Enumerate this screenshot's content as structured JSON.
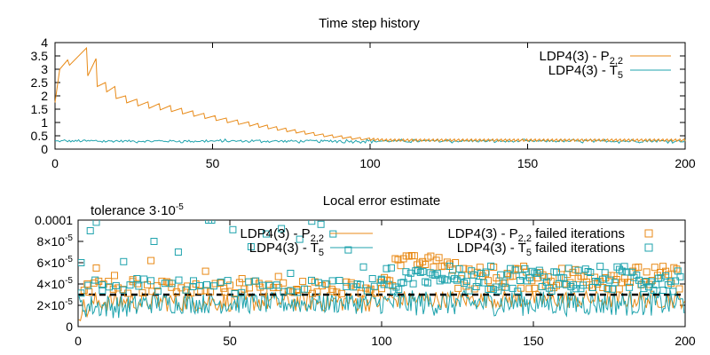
{
  "colors": {
    "orange": "#e88a17",
    "teal": "#1fa3ad",
    "axis": "#000000",
    "tolerance_line": "#000000"
  },
  "chart_data": [
    {
      "type": "line",
      "title": "Time step history",
      "xlabel": "",
      "ylabel": "",
      "xlim": [
        0,
        200
      ],
      "ylim": [
        0,
        4
      ],
      "x_ticks": [
        0,
        50,
        100,
        150,
        200
      ],
      "y_ticks": [
        0,
        0.5,
        1,
        1.5,
        2,
        2.5,
        3,
        3.5,
        4
      ],
      "x_tick_labels": [
        "0",
        "50",
        "100",
        "150",
        "200"
      ],
      "y_tick_labels": [
        "0",
        "0.5",
        "1",
        "1.5",
        "2",
        "2.5",
        "3",
        "3.5",
        "4"
      ],
      "grid": false,
      "legend_position": "top-right",
      "series": [
        {
          "name": "LDP4(3) - P",
          "name_sub": "2,2",
          "color": "orange",
          "style": "sawtooth",
          "peaks": [
            [
              0.3,
              1.75
            ],
            [
              4,
              3.4
            ],
            [
              10,
              3.8
            ],
            [
              13,
              2.5
            ],
            [
              16,
              2.35
            ],
            [
              21,
              2.0
            ],
            [
              28,
              1.75
            ],
            [
              36,
              1.6
            ],
            [
              45,
              1.35
            ],
            [
              55,
              1.1
            ],
            [
              65,
              0.9
            ],
            [
              75,
              0.7
            ],
            [
              85,
              0.52
            ],
            [
              95,
              0.4
            ],
            [
              105,
              0.33
            ],
            [
              200,
              0.33
            ]
          ],
          "drop": 0.22
        },
        {
          "name": "LDP4(3) - T",
          "name_sub": "5",
          "color": "teal",
          "style": "noise",
          "mean": 0.3,
          "amplitude": 0.05
        }
      ]
    },
    {
      "type": "scatter",
      "title": "Local error estimate",
      "xlabel": "",
      "ylabel": "",
      "xlim": [
        0,
        200
      ],
      "ylim": [
        0,
        0.0001
      ],
      "x_ticks": [
        0,
        50,
        100,
        150,
        200
      ],
      "y_ticks": [
        0,
        2e-05,
        4e-05,
        6e-05,
        8e-05,
        0.0001
      ],
      "x_tick_labels": [
        "0",
        "50",
        "100",
        "150",
        "200"
      ],
      "y_tick_labels": [
        {
          "base": "0",
          "exp": ""
        },
        {
          "base": "2×10",
          "exp": "-5"
        },
        {
          "base": "4×10",
          "exp": "-5"
        },
        {
          "base": "6×10",
          "exp": "-5"
        },
        {
          "base": "8×10",
          "exp": "-5"
        },
        {
          "base": "0.0001",
          "exp": ""
        }
      ],
      "grid": false,
      "legend_position": "top",
      "annotation": {
        "base": "tolerance 3·10",
        "exp": "-5"
      },
      "tolerance": 3e-05,
      "series": [
        {
          "name": "LDP4(3) - P",
          "name_sub": "2,2",
          "color": "orange",
          "kind": "line"
        },
        {
          "name": "LDP4(3) - T",
          "name_sub": "5",
          "color": "teal",
          "kind": "line"
        },
        {
          "name": "LDP4(3) - P",
          "name_sub": "2,2",
          "name_suffix": " failed iterations",
          "color": "orange",
          "kind": "squares"
        },
        {
          "name": "LDP4(3) - T",
          "name_sub": "5",
          "name_suffix": " failed iterations",
          "color": "teal",
          "kind": "squares"
        }
      ],
      "line_band": [
        1e-05,
        3e-05
      ],
      "failed_orange_samples": [
        [
          3,
          4e-05
        ],
        [
          6,
          5.5e-05
        ],
        [
          12,
          4.8e-05
        ],
        [
          18,
          4.4e-05
        ],
        [
          24,
          6.2e-05
        ],
        [
          30,
          4.1e-05
        ],
        [
          36,
          3.8e-05
        ],
        [
          42,
          5.2e-05
        ],
        [
          48,
          3.6e-05
        ],
        [
          54,
          4.5e-05
        ],
        [
          60,
          3.7e-05
        ],
        [
          66,
          4.7e-05
        ],
        [
          72,
          3.5e-05
        ],
        [
          78,
          4.2e-05
        ],
        [
          84,
          3.3e-05
        ],
        [
          90,
          3.9e-05
        ],
        [
          96,
          3.4e-05
        ]
      ],
      "failed_teal_samples": [
        [
          1,
          6e-05
        ],
        [
          4,
          9e-05
        ],
        [
          6,
          9.8e-05
        ],
        [
          15,
          6.1e-05
        ],
        [
          25,
          8e-05
        ],
        [
          33,
          7e-05
        ],
        [
          43,
          0.0001
        ],
        [
          44,
          0.0001
        ],
        [
          51,
          9.1e-05
        ],
        [
          57,
          7.5e-05
        ],
        [
          62,
          8.7e-05
        ],
        [
          67,
          9.2e-05
        ],
        [
          73,
          8.2e-05
        ],
        [
          77,
          9.9e-05
        ],
        [
          80,
          9.6e-05
        ],
        [
          84,
          8.7e-05
        ],
        [
          89,
          7.2e-05
        ],
        [
          94,
          5.6e-05
        ],
        [
          97,
          4.5e-05
        ],
        [
          8,
          3.4e-05
        ],
        [
          20,
          3.8e-05
        ],
        [
          38,
          4.3e-05
        ],
        [
          70,
          5e-05
        ],
        [
          92,
          4e-05
        ]
      ]
    }
  ]
}
